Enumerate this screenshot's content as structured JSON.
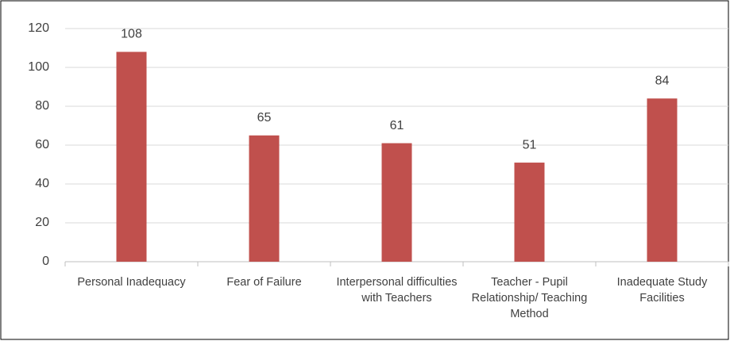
{
  "chart_data": {
    "type": "bar",
    "categories": [
      "Personal Inadequacy",
      "Fear of Failure",
      "Interpersonal difficulties with Teachers",
      "Teacher - Pupil Relationship/ Teaching Method",
      "Inadequate Study Facilities"
    ],
    "values": [
      108,
      65,
      61,
      51,
      84
    ],
    "color": "#c0504d",
    "ylim": [
      0,
      120
    ],
    "yticks": [
      0,
      20,
      40,
      60,
      80,
      100,
      120
    ],
    "grid": true
  }
}
